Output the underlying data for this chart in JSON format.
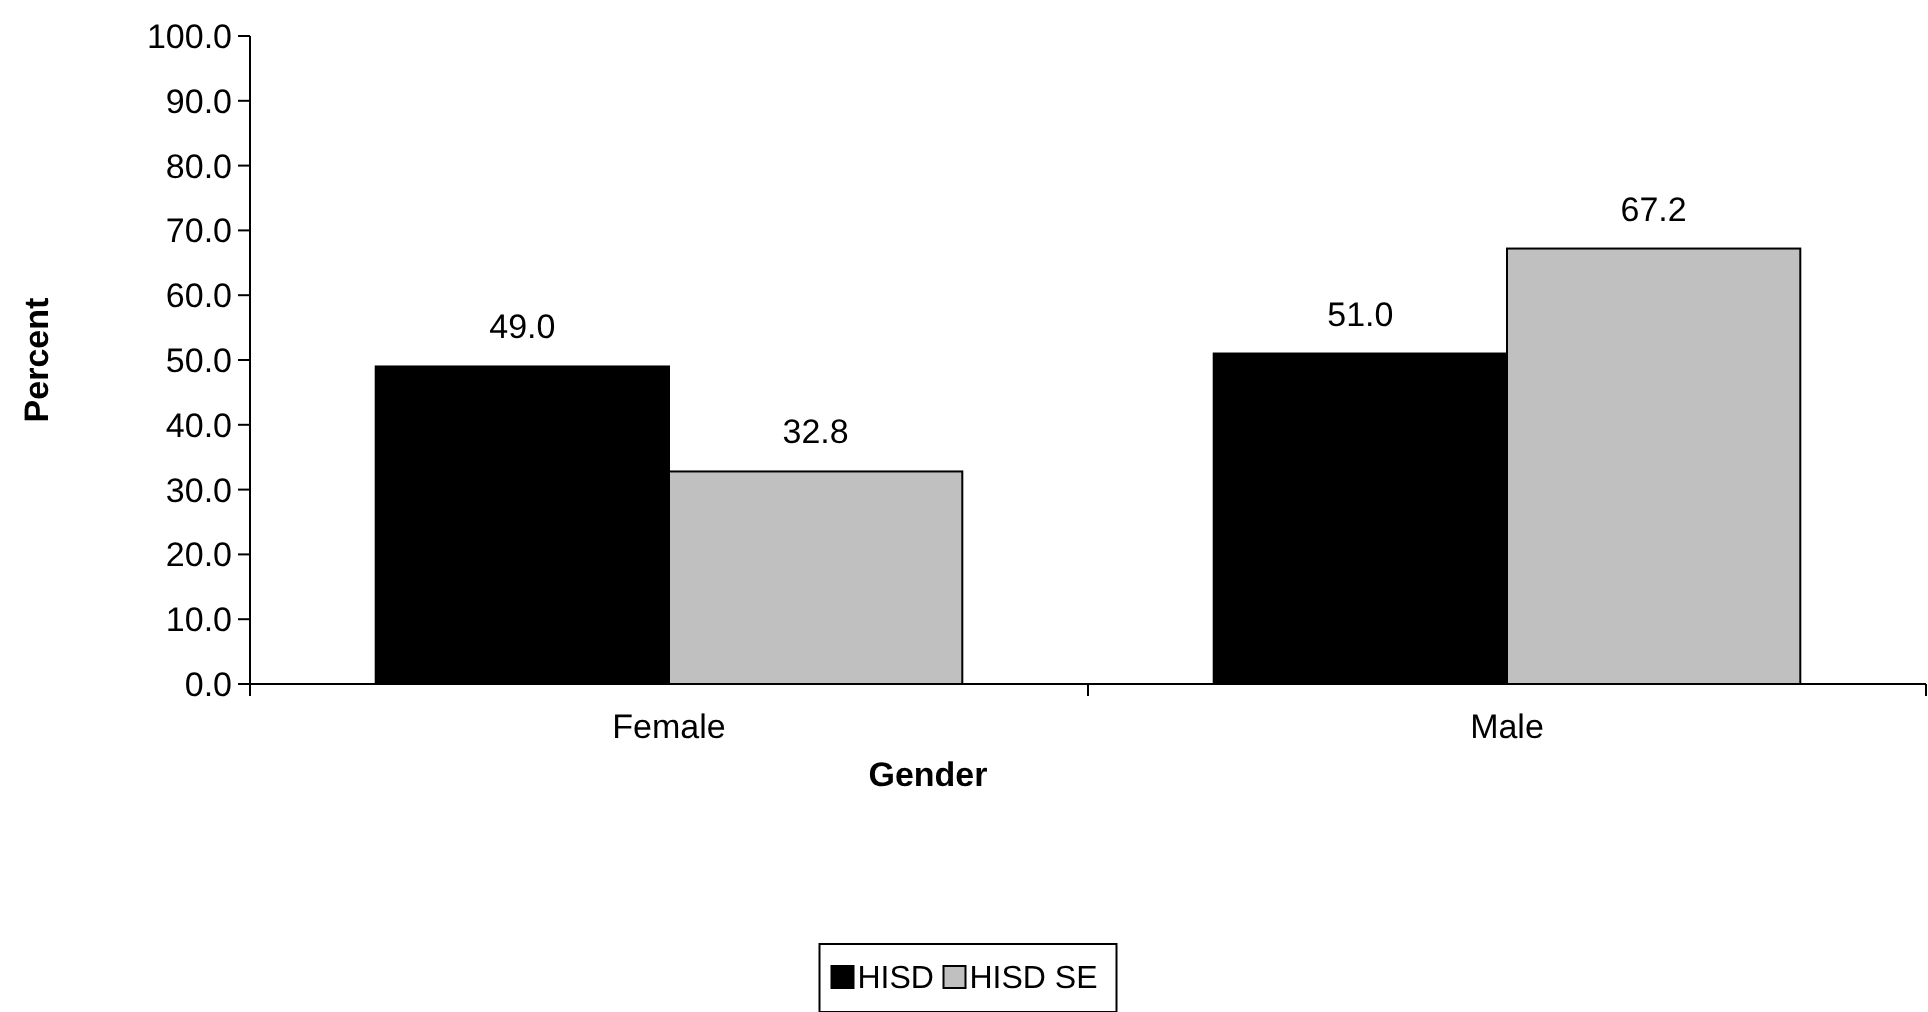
{
  "chart_data": {
    "type": "bar",
    "xlabel": "Gender",
    "ylabel": "Percent",
    "categories": [
      "Female",
      "Male"
    ],
    "series": [
      {
        "name": "HISD",
        "color": "#000000",
        "values": [
          49.0,
          51.0
        ],
        "value_labels": [
          "49.0",
          "51.0"
        ]
      },
      {
        "name": "HISD SE",
        "color": "#c0c0c0",
        "values": [
          32.8,
          67.2
        ],
        "value_labels": [
          "32.8",
          "67.2"
        ]
      }
    ],
    "ylim": [
      0,
      100
    ],
    "yticks": [
      {
        "value": 0,
        "label": "0.0"
      },
      {
        "value": 10,
        "label": "10.0"
      },
      {
        "value": 20,
        "label": "20.0"
      },
      {
        "value": 30,
        "label": "30.0"
      },
      {
        "value": 40,
        "label": "40.0"
      },
      {
        "value": 50,
        "label": "50.0"
      },
      {
        "value": 60,
        "label": "60.0"
      },
      {
        "value": 70,
        "label": "70.0"
      },
      {
        "value": 80,
        "label": "80.0"
      },
      {
        "value": 90,
        "label": "90.0"
      },
      {
        "value": 100,
        "label": "100.0"
      }
    ],
    "grid": false,
    "legend": "bottom"
  }
}
